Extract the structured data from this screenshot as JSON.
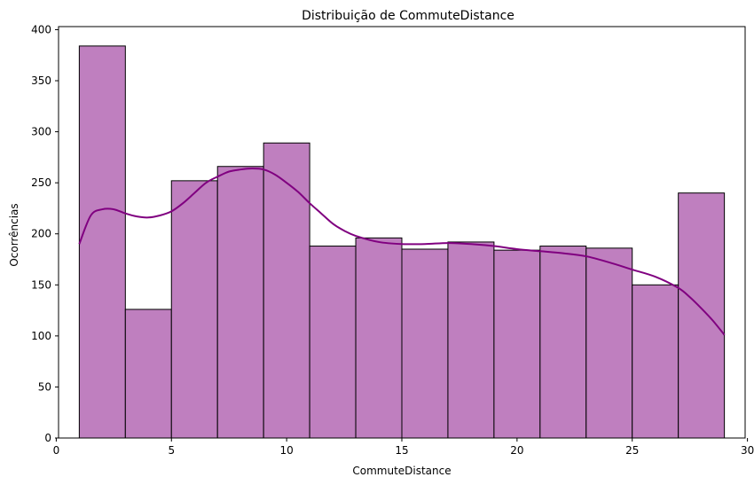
{
  "chart_data": {
    "type": "bar",
    "title": "Distribuição de CommuteDistance",
    "xlabel": "CommuteDistance",
    "ylabel": "Ocorrências",
    "xlim": [
      0.1,
      29.9
    ],
    "ylim": [
      0,
      403
    ],
    "xticks": [
      0,
      5,
      10,
      15,
      20,
      25,
      30
    ],
    "yticks": [
      0,
      50,
      100,
      150,
      200,
      250,
      300,
      350,
      400
    ],
    "grid": false,
    "colors": {
      "bar_fill": "#bf7fbf",
      "bar_edge": "#000000",
      "kde": "#800080"
    },
    "bins": [
      {
        "start": 1,
        "end": 3,
        "count": 384
      },
      {
        "start": 3,
        "end": 5,
        "count": 126
      },
      {
        "start": 5,
        "end": 7,
        "count": 252
      },
      {
        "start": 7,
        "end": 9,
        "count": 266
      },
      {
        "start": 9,
        "end": 11,
        "count": 289
      },
      {
        "start": 11,
        "end": 13,
        "count": 188
      },
      {
        "start": 13,
        "end": 15,
        "count": 196
      },
      {
        "start": 15,
        "end": 17,
        "count": 185
      },
      {
        "start": 17,
        "end": 19,
        "count": 192
      },
      {
        "start": 19,
        "end": 21,
        "count": 184
      },
      {
        "start": 21,
        "end": 23,
        "count": 188
      },
      {
        "start": 23,
        "end": 25,
        "count": 186
      },
      {
        "start": 25,
        "end": 27,
        "count": 150
      },
      {
        "start": 27,
        "end": 29,
        "count": 240
      }
    ],
    "kde_series": {
      "x": [
        1,
        1.5,
        2,
        2.5,
        3,
        3.5,
        4,
        4.5,
        5,
        5.5,
        6,
        6.5,
        7,
        7.5,
        8,
        8.5,
        9,
        9.5,
        10,
        10.5,
        11,
        11.5,
        12,
        12.5,
        13,
        14,
        15,
        16,
        17,
        18,
        19,
        20,
        21,
        22,
        23,
        24,
        25,
        26,
        27,
        27.5,
        28,
        28.5,
        29
      ],
      "y": [
        190,
        218,
        224,
        224,
        220,
        217,
        216,
        218,
        222,
        230,
        240,
        250,
        256,
        261,
        263,
        264,
        263,
        258,
        250,
        241,
        230,
        220,
        210,
        203,
        198,
        192,
        190,
        190,
        191,
        190,
        188,
        185,
        183,
        181,
        178,
        172,
        165,
        158,
        147,
        138,
        127,
        115,
        101
      ]
    }
  }
}
